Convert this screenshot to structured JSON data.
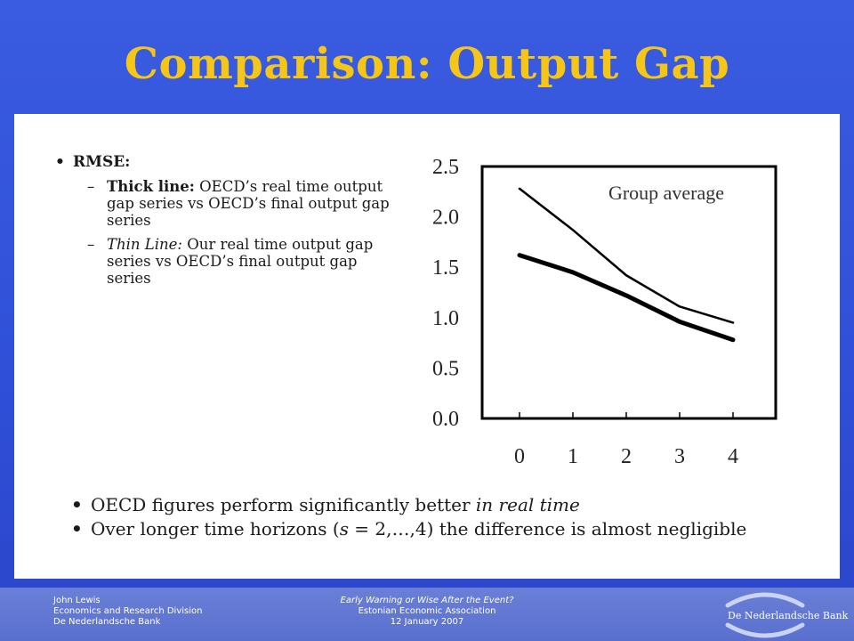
{
  "slide": {
    "title": "Comparison: Output Gap"
  },
  "bullets_top": {
    "heading": "RMSE:",
    "items": [
      {
        "label": "Thick line:",
        "text": " OECD’s real time output gap series vs OECD’s final output gap series"
      },
      {
        "label": "Thin Line:",
        "text": " Our real time output gap series vs OECD’s final output gap series"
      }
    ]
  },
  "bullets_bottom": {
    "b1_text": "OECD figures perform significantly better ",
    "b1_italic": "in real time",
    "b2_pre": "Over longer time horizons (",
    "b2_italic": "s",
    "b2_post": " = 2,…,4) the difference is almost negligible"
  },
  "chart_data": {
    "type": "line",
    "title": "Group average",
    "xlabel": "",
    "ylabel": "",
    "categories": [
      "0",
      "1",
      "2",
      "3",
      "4"
    ],
    "x": [
      0,
      1,
      2,
      3,
      4
    ],
    "ylim": [
      0,
      2.5
    ],
    "yticks": [
      "0.0",
      "0.5",
      "1.0",
      "1.5",
      "2.0",
      "2.5"
    ],
    "grid": false,
    "series": [
      {
        "style": "thick",
        "values": [
          1.62,
          1.45,
          1.22,
          0.96,
          0.78
        ]
      },
      {
        "style": "thin",
        "values": [
          2.28,
          1.87,
          1.42,
          1.11,
          0.95
        ]
      }
    ]
  },
  "footer": {
    "author": "John Lewis",
    "division": "Economics and Research Division",
    "bank": "De Nederlandsche Bank",
    "talk_title": "Early Warning or Wise After the Event?",
    "venue": "Estonian Economic Association",
    "date": "12 January 2007",
    "logo_text": "De Nederlandsche Bank"
  }
}
